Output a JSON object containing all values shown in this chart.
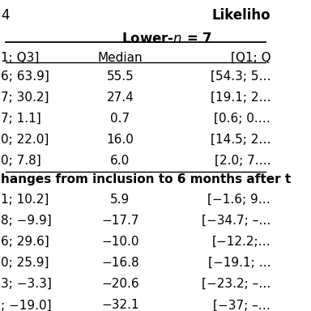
{
  "title_line1": "Likeliho",
  "top_left_text": "4",
  "header_cols": [
    "1; Q3]",
    "Median",
    "[Q1; Q"
  ],
  "section_label": "hanges from inclusion to 6 months after t",
  "rows": [
    [
      "6; 63.9]",
      "55.5",
      "[54.3; 5…"
    ],
    [
      "7; 30.2]",
      "27.4",
      "[19.1; 2…"
    ],
    [
      "7; 1.1]",
      "0.7",
      "[0.6; 0.…"
    ],
    [
      "0; 22.0]",
      "16.0",
      "[14.5; 2…"
    ],
    [
      "0; 7.8]",
      "6.0",
      "[2.0; 7.…"
    ],
    [
      "1; 10.2]",
      "5.9",
      "[−1.6; 9…"
    ],
    [
      "8; −9.9]",
      "−17.7",
      "[−34.7; –…"
    ],
    [
      "6; 29.6]",
      "−10.0",
      "[−12.2;…"
    ],
    [
      "0; 25.9]",
      "−16.8",
      "[−19.1; …"
    ],
    [
      "3; −3.3]",
      "−20.6",
      "[−23.2; –…"
    ],
    [
      "; −19.0]",
      "−32.1",
      "[−37; –…"
    ]
  ],
  "bg_color": "#ffffff",
  "text_color": "#000000",
  "font_size_header": 11,
  "font_size_data": 11,
  "font_size_title": 12
}
